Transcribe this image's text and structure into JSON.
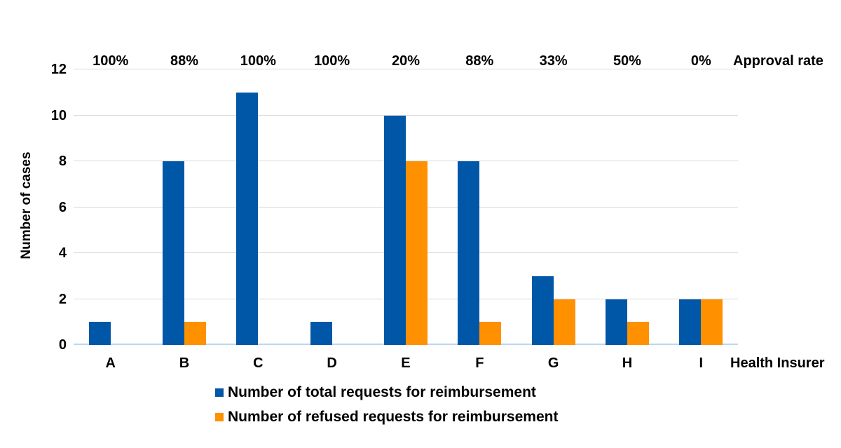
{
  "chart_data": {
    "type": "bar",
    "title": "",
    "categories": [
      "A",
      "B",
      "C",
      "D",
      "E",
      "F",
      "G",
      "H",
      "I"
    ],
    "series": [
      {
        "name": "Number of total requests for reimbursement",
        "color": "#0057A8",
        "values": [
          1,
          8,
          11,
          1,
          10,
          8,
          3,
          2,
          2
        ]
      },
      {
        "name": "Number of refused requests for reimbursement",
        "color": "#FF9000",
        "values": [
          0,
          1,
          0,
          0,
          8,
          1,
          2,
          1,
          2
        ]
      }
    ],
    "approval_rates": [
      "100%",
      "88%",
      "100%",
      "100%",
      "20%",
      "88%",
      "33%",
      "50%",
      "0%"
    ],
    "approval_rate_label": "Approval rate",
    "xlabel": "Health Insurer",
    "ylabel": "Number of cases",
    "ylim": [
      0,
      12
    ],
    "yticks": [
      0,
      2,
      4,
      6,
      8,
      10,
      12
    ],
    "grid": true,
    "legend_position": "bottom",
    "colors": {
      "gridline": "#D9D9D9",
      "baseline": "#BDD7EE",
      "text": "#000000",
      "background": "#FFFFFF"
    }
  }
}
